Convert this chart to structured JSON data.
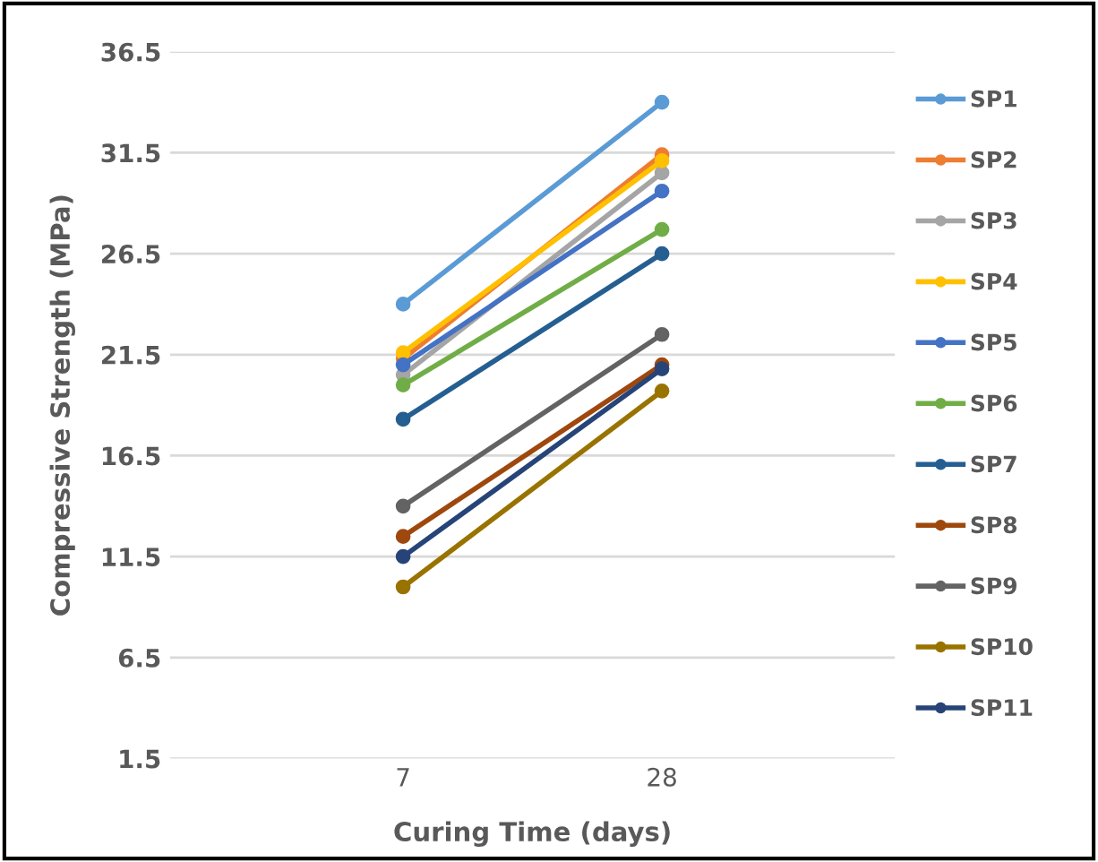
{
  "chart_data": {
    "type": "line",
    "xlabel": "Curing Time (days)",
    "ylabel": "Compressive Strength (MPa)",
    "categories": [
      "7",
      "28"
    ],
    "series": [
      {
        "name": "SP1",
        "color": "#5b9bd5",
        "values": [
          24.0,
          34.0
        ]
      },
      {
        "name": "SP2",
        "color": "#ed7d31",
        "values": [
          21.3,
          31.4
        ]
      },
      {
        "name": "SP3",
        "color": "#a5a5a5",
        "values": [
          20.5,
          30.5
        ]
      },
      {
        "name": "SP4",
        "color": "#ffc000",
        "values": [
          21.6,
          31.1
        ]
      },
      {
        "name": "SP5",
        "color": "#4472c4",
        "values": [
          21.0,
          29.6
        ]
      },
      {
        "name": "SP6",
        "color": "#70ad47",
        "values": [
          20.0,
          27.7
        ]
      },
      {
        "name": "SP7",
        "color": "#255e91",
        "values": [
          18.3,
          26.5
        ]
      },
      {
        "name": "SP8",
        "color": "#9e480e",
        "values": [
          12.5,
          21.0
        ]
      },
      {
        "name": "SP9",
        "color": "#636363",
        "values": [
          14.0,
          22.5
        ]
      },
      {
        "name": "SP10",
        "color": "#997300",
        "values": [
          10.0,
          19.7
        ]
      },
      {
        "name": "SP11",
        "color": "#264478",
        "values": [
          11.5,
          20.8
        ]
      }
    ],
    "ylim": [
      1.5,
      36.5
    ],
    "yticks": [
      1.5,
      6.5,
      11.5,
      16.5,
      21.5,
      26.5,
      31.5,
      36.5
    ],
    "grid": "y",
    "legend": "right",
    "marker": "circle",
    "line_style": "solid"
  }
}
